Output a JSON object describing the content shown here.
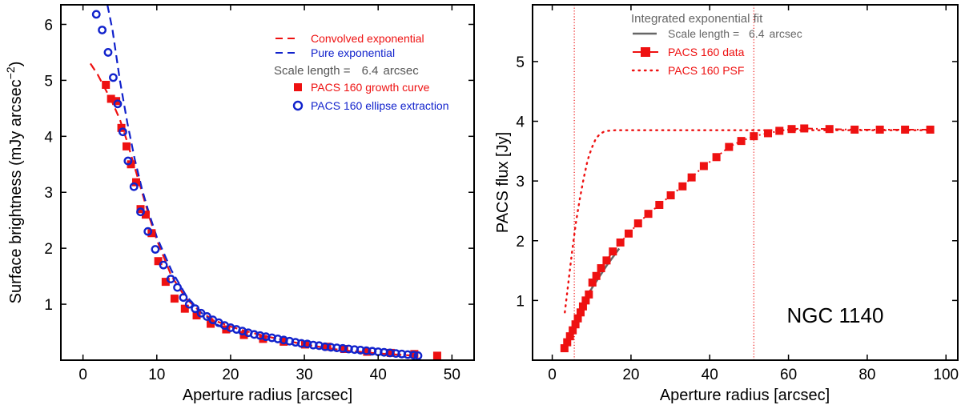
{
  "chart_data": [
    {
      "type": "scatter",
      "xlabel": "Aperture radius [arcsec]",
      "ylabel": "Surface brightness (mJy arcsec",
      "ylabel_sup": "−2",
      "ylabel_end": ")",
      "xlim": [
        -3,
        53
      ],
      "ylim": [
        0,
        6.35
      ],
      "xticks": [
        0,
        10,
        20,
        30,
        40,
        50
      ],
      "yticks": [
        1,
        2,
        3,
        4,
        5,
        6
      ],
      "grid": false,
      "legend_position": "top-right",
      "legend": {
        "conv": "Convolved exponential",
        "pure": "Pure exponential",
        "scale_prefix": "Scale length = ",
        "scale_value": "6.4",
        "scale_unit": "arcsec",
        "growth": "PACS 160 growth curve",
        "ellipse": "PACS 160 ellipse extraction"
      },
      "colors": {
        "red": "#ee1111",
        "blue": "#1122cc",
        "gray": "#555555"
      },
      "series": [
        {
          "name": "Convolved exponential",
          "style": "dashed-line",
          "x": [
            1,
            2,
            3,
            4,
            5,
            6,
            7,
            8,
            9,
            10,
            12,
            14,
            16,
            18,
            20,
            22,
            25,
            30,
            35,
            40,
            45
          ],
          "y": [
            5.3,
            5.1,
            4.85,
            4.6,
            4.3,
            3.9,
            3.45,
            3.0,
            2.55,
            2.15,
            1.5,
            1.1,
            0.85,
            0.7,
            0.6,
            0.52,
            0.42,
            0.28,
            0.18,
            0.12,
            0.08
          ]
        },
        {
          "name": "Pure exponential",
          "style": "dashed-line",
          "x": [
            3.3,
            4,
            5,
            6,
            7,
            8,
            9,
            10,
            12,
            14,
            16,
            18,
            20
          ],
          "y": [
            6.35,
            5.9,
            5.0,
            4.25,
            3.6,
            3.05,
            2.6,
            2.2,
            1.6,
            1.15,
            0.85,
            0.65,
            0.5
          ]
        },
        {
          "name": "PACS 160 growth curve",
          "style": "square",
          "x": [
            3.1,
            3.8,
            4.5,
            5.2,
            5.9,
            6.5,
            7.2,
            7.8,
            8.5,
            9.3,
            10.2,
            11.2,
            12.4,
            13.8,
            15.4,
            17.3,
            19.4,
            21.8,
            24.4,
            27.2,
            30.1,
            33.1,
            35.4,
            38.5,
            41.7,
            44.9,
            48.0
          ],
          "y": [
            4.92,
            4.67,
            4.63,
            4.15,
            3.82,
            3.5,
            3.18,
            2.7,
            2.6,
            2.27,
            1.77,
            1.4,
            1.1,
            0.92,
            0.8,
            0.65,
            0.55,
            0.45,
            0.38,
            0.33,
            0.28,
            0.24,
            0.2,
            0.15,
            0.13,
            0.11,
            0.08
          ]
        },
        {
          "name": "PACS 160 ellipse extraction",
          "style": "circle",
          "x": [
            1.8,
            2.6,
            3.4,
            4.1,
            4.7,
            5.4,
            6.1,
            6.9,
            7.8,
            8.8,
            9.8,
            10.9,
            11.9,
            12.8,
            13.6,
            14.4,
            15.2,
            16.0,
            16.8,
            17.6,
            18.4,
            19.2,
            20.0,
            20.8,
            21.6,
            22.4,
            23.2,
            24.0,
            24.8,
            25.6,
            26.4,
            27.2,
            28.0,
            28.8,
            29.6,
            30.4,
            31.2,
            32.0,
            32.8,
            33.6,
            34.4,
            35.2,
            36.0,
            36.8,
            37.6,
            38.4,
            39.2,
            40.0,
            40.8,
            41.6,
            42.4,
            43.2,
            44.0,
            44.8,
            45.4
          ],
          "y": [
            6.18,
            5.9,
            5.5,
            5.05,
            4.58,
            4.08,
            3.56,
            3.1,
            2.65,
            2.3,
            1.98,
            1.7,
            1.45,
            1.3,
            1.12,
            1.0,
            0.92,
            0.84,
            0.78,
            0.72,
            0.67,
            0.62,
            0.58,
            0.55,
            0.52,
            0.49,
            0.46,
            0.44,
            0.42,
            0.4,
            0.38,
            0.36,
            0.34,
            0.32,
            0.3,
            0.29,
            0.27,
            0.26,
            0.24,
            0.23,
            0.22,
            0.21,
            0.2,
            0.19,
            0.18,
            0.17,
            0.16,
            0.15,
            0.14,
            0.13,
            0.12,
            0.11,
            0.1,
            0.09,
            0.08
          ]
        }
      ]
    },
    {
      "type": "line",
      "xlabel": "Aperture radius [arcsec]",
      "ylabel": "PACS flux [Jy]",
      "xlim": [
        -5,
        103
      ],
      "ylim": [
        0,
        5.95
      ],
      "xticks": [
        0,
        20,
        40,
        60,
        80,
        100
      ],
      "yticks": [
        1,
        2,
        3,
        4,
        5
      ],
      "grid": false,
      "legend_position": "top-left",
      "annotation": "NGC 1140",
      "vlines": [
        5.6,
        51.2
      ],
      "legend": {
        "fit_title": "Integrated exponential fit",
        "scale_prefix": "Scale length = ",
        "scale_value": "6.4",
        "scale_unit": "arcsec",
        "data": "PACS 160 data",
        "psf": "PACS 160 PSF"
      },
      "colors": {
        "red": "#ee1111",
        "gray": "#666666"
      },
      "series": [
        {
          "name": "Integrated exponential fit",
          "style": "solid-line",
          "x": [
            3,
            5,
            8,
            10,
            14,
            17
          ],
          "y": [
            0.2,
            0.5,
            0.95,
            1.2,
            1.6,
            1.87
          ]
        },
        {
          "name": "PACS 160 data",
          "style": "square-dashdot",
          "x": [
            3.1,
            3.8,
            4.5,
            5.2,
            5.9,
            6.5,
            7.2,
            7.8,
            8.5,
            9.3,
            10.2,
            11.2,
            12.4,
            13.8,
            15.4,
            17.3,
            19.4,
            21.8,
            24.4,
            27.2,
            30.1,
            33.1,
            35.4,
            38.5,
            41.7,
            44.9,
            48.0,
            51.2,
            54.8,
            57.7,
            60.8,
            64.0,
            70.4,
            76.8,
            83.2,
            89.6,
            96.0
          ],
          "y": [
            0.2,
            0.3,
            0.4,
            0.5,
            0.6,
            0.7,
            0.8,
            0.9,
            1.0,
            1.1,
            1.3,
            1.41,
            1.54,
            1.67,
            1.82,
            1.97,
            2.12,
            2.29,
            2.45,
            2.6,
            2.76,
            2.91,
            3.06,
            3.25,
            3.4,
            3.57,
            3.67,
            3.75,
            3.8,
            3.84,
            3.87,
            3.88,
            3.87,
            3.86,
            3.86,
            3.86,
            3.86
          ]
        },
        {
          "name": "PACS 160 PSF",
          "style": "dotted-line",
          "x": [
            3.2,
            4,
            5,
            6,
            7,
            8,
            9,
            10,
            11,
            12,
            13,
            14,
            16,
            20,
            30,
            40,
            50,
            60,
            70,
            80,
            90,
            96
          ],
          "y": [
            0.8,
            1.25,
            1.8,
            2.3,
            2.7,
            3.05,
            3.35,
            3.55,
            3.7,
            3.78,
            3.82,
            3.84,
            3.85,
            3.85,
            3.85,
            3.85,
            3.85,
            3.85,
            3.85,
            3.85,
            3.85,
            3.85
          ]
        }
      ]
    }
  ]
}
